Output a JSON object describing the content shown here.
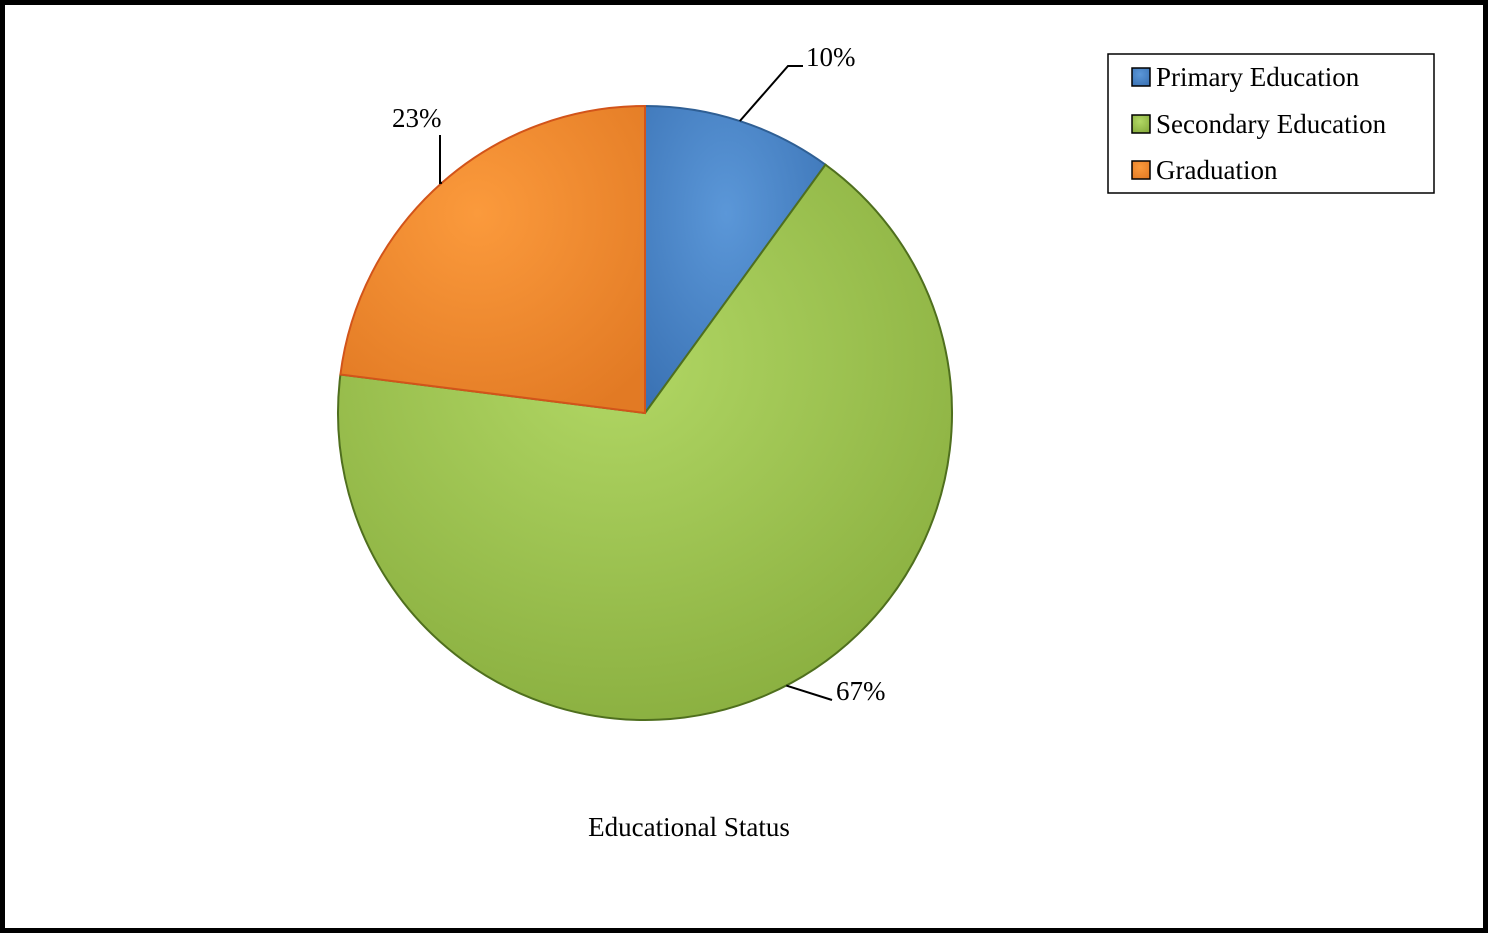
{
  "chart_data": {
    "type": "pie",
    "title": "Educational Status",
    "categories": [
      "Primary Education",
      "Secondary Education",
      "Graduation"
    ],
    "values": [
      10,
      67,
      23
    ],
    "labels": [
      "10%",
      "67%",
      "23%"
    ],
    "colors": [
      "#4a86c8",
      "#9bc44a",
      "#f08a30"
    ],
    "start_angle_deg": 0,
    "direction": "clockwise",
    "legend": {
      "position": "top-right",
      "entries": [
        "Primary Education",
        "Secondary Education",
        "Graduation"
      ]
    }
  }
}
